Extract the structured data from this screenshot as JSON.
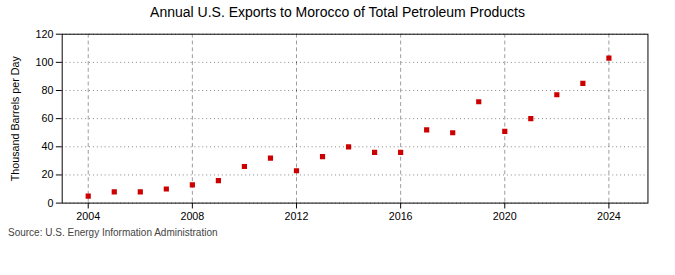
{
  "chart_data": {
    "type": "scatter",
    "title": "Annual U.S. Exports to Morocco of Total Petroleum Products",
    "ylabel": "Thousand Barrels per Day",
    "source": "Source: U.S. Energy Information Administration",
    "x": [
      2004,
      2005,
      2006,
      2007,
      2008,
      2009,
      2010,
      2011,
      2012,
      2013,
      2014,
      2015,
      2016,
      2017,
      2018,
      2019,
      2020,
      2021,
      2022,
      2023,
      2024
    ],
    "values": [
      5,
      8,
      8,
      10,
      13,
      16,
      26,
      32,
      23,
      33,
      40,
      36,
      36,
      52,
      50,
      72,
      51,
      60,
      77,
      85,
      103
    ],
    "color": "#cc0000",
    "marker": "square",
    "xlim": [
      2003.0,
      2025.5
    ],
    "ylim": [
      0,
      120
    ],
    "xticks": [
      2004,
      2008,
      2012,
      2016,
      2020,
      2024
    ],
    "yticks": [
      0,
      20,
      40,
      60,
      80,
      100,
      120
    ],
    "grid": true
  }
}
